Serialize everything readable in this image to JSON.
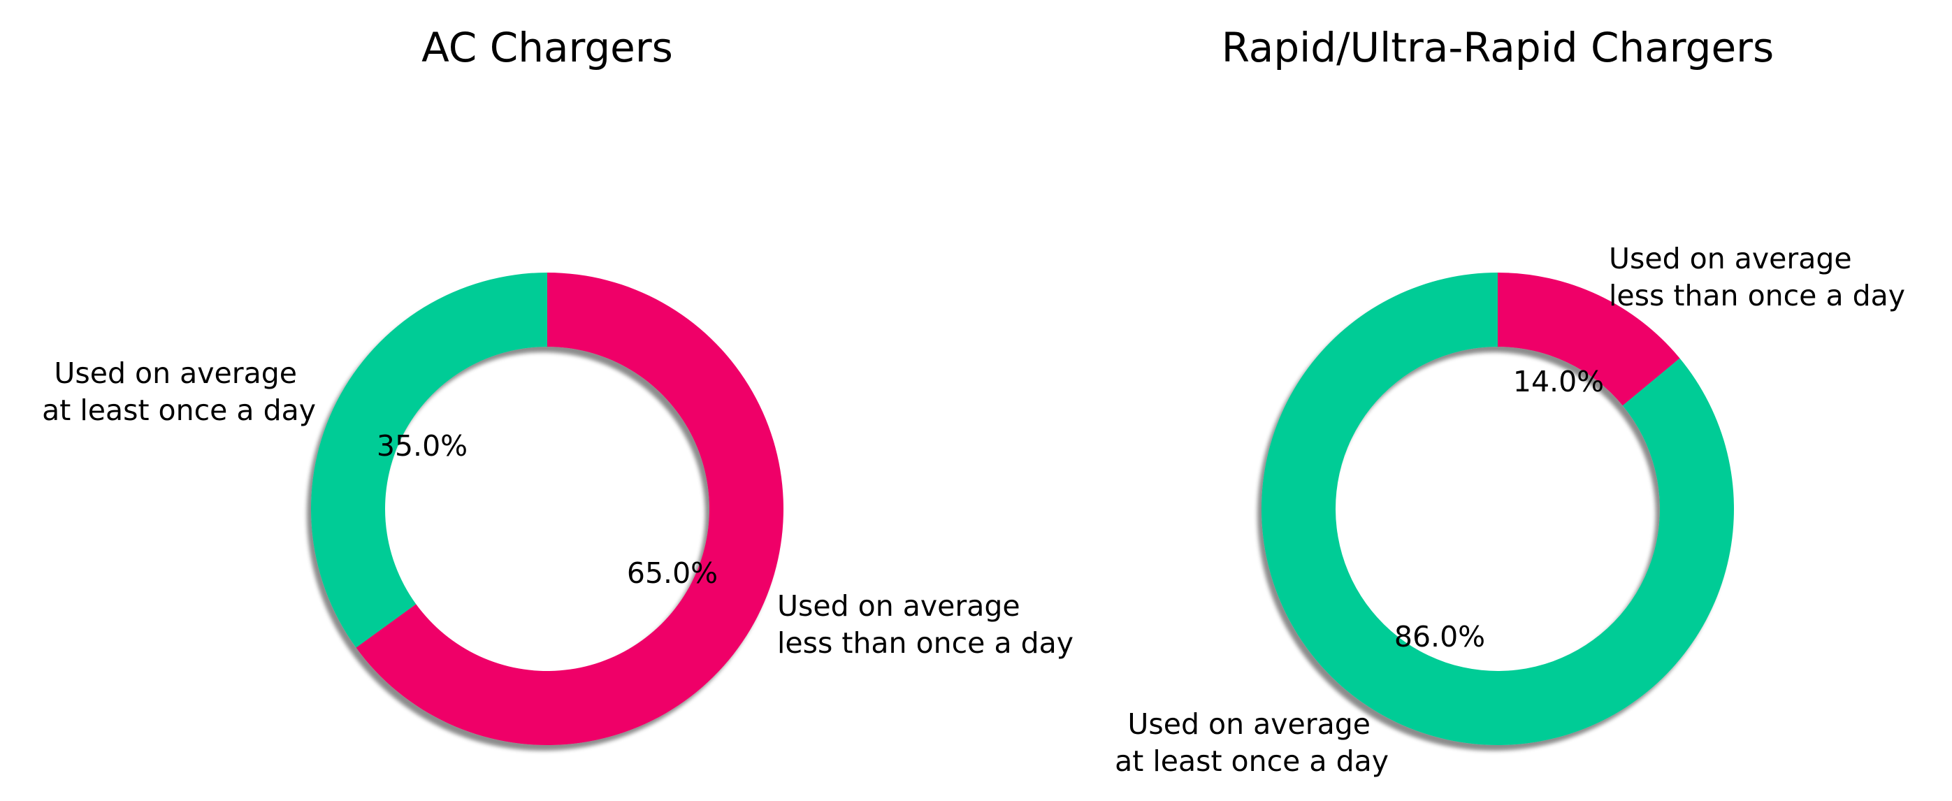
{
  "chart_data": [
    {
      "type": "pie",
      "variant": "donut",
      "title": "AC Chargers",
      "slices": [
        {
          "label": "Used on average\n at least once a day",
          "value": 35.0,
          "pct_label": "35.0%",
          "color": "#00cc96"
        },
        {
          "label": "Used on average\n less than once a day",
          "value": 65.0,
          "pct_label": "65.0%",
          "color": "#ef0067"
        }
      ],
      "shadow": true,
      "legend": "none"
    },
    {
      "type": "pie",
      "variant": "donut",
      "title": "Rapid/Ultra-Rapid Chargers",
      "slices": [
        {
          "label": "Used on average\n at least once a day",
          "value": 86.0,
          "pct_label": "86.0%",
          "color": "#00cc96"
        },
        {
          "label": "Used on average\n less than once a day",
          "value": 14.0,
          "pct_label": "14.0%",
          "color": "#ef0067"
        }
      ],
      "shadow": true,
      "legend": "none"
    }
  ]
}
